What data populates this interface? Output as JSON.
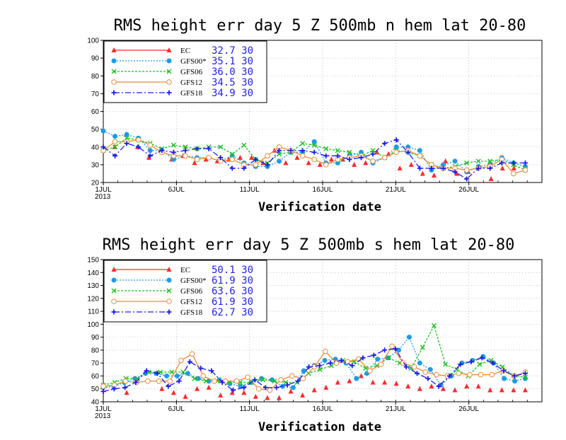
{
  "chart_data": [
    {
      "type": "line",
      "title": "RMS height err   day 5  Z 500mb  n hem  lat 20-80",
      "xlabel": "Verification date",
      "x_ticks": [
        "1JUL",
        "6JUL",
        "11JUL",
        "16JUL",
        "21JUL",
        "26JUL"
      ],
      "year_label": "2013",
      "xlim": [
        1,
        31
      ],
      "ylim": [
        20,
        100
      ],
      "y_ticks": [
        20,
        30,
        40,
        50,
        60,
        70,
        80,
        90,
        100
      ],
      "grid": true,
      "legend_position": "top-left",
      "series": [
        {
          "name": "EC",
          "value": "32.7 30",
          "color": "#ff2a2a",
          "marker": "triangle",
          "dash": "solid",
          "show_line": false,
          "values": [
            null,
            40,
            47,
            40,
            34,
            38,
            33,
            35,
            31,
            33,
            32,
            33,
            34,
            34,
            31,
            38,
            31,
            34,
            31,
            30,
            33,
            33,
            30,
            31,
            37,
            36,
            28,
            30,
            25,
            24,
            32,
            25,
            26,
            29,
            22,
            28,
            28,
            28
          ]
        },
        {
          "name": "GFS00*",
          "value": "35.1 30",
          "color": "#1e9be6",
          "marker": "dot",
          "dash": "2,2",
          "show_line": true,
          "values": [
            49,
            46,
            47,
            45,
            38,
            38,
            33,
            35,
            34,
            34,
            32,
            35,
            31,
            29,
            29,
            32,
            37,
            37,
            43,
            31,
            31,
            35,
            37,
            31,
            34,
            40,
            40,
            38,
            27,
            30,
            32,
            26,
            29,
            30,
            34,
            31,
            29
          ]
        },
        {
          "name": "GFS06",
          "value": "36.0 30",
          "color": "#1ebe1e",
          "marker": "cross",
          "dash": "3,2",
          "show_line": true,
          "values": [
            38,
            40,
            45,
            44,
            42,
            39,
            41,
            40,
            39,
            40,
            40,
            36,
            41,
            33,
            31,
            36,
            37,
            42,
            41,
            39,
            38,
            37,
            35,
            38,
            34,
            38,
            37,
            35,
            30,
            28,
            29,
            31,
            32,
            32,
            33,
            30,
            27
          ]
        },
        {
          "name": "GFS12",
          "value": "34.5 30",
          "color": "#e68c3c",
          "marker": "circle",
          "dash": "solid",
          "show_line": true,
          "values": [
            38,
            43,
            43,
            44,
            41,
            37,
            35,
            35,
            33,
            34,
            32,
            33,
            30,
            30,
            35,
            40,
            38,
            35,
            33,
            30,
            33,
            34,
            35,
            32,
            34,
            37,
            38,
            35,
            30,
            28,
            28,
            27,
            28,
            29,
            33,
            25,
            27
          ]
        },
        {
          "name": "GFS18",
          "value": "34.9 30",
          "color": "#1e1ee6",
          "marker": "plus",
          "dash": "8,3,2,3",
          "show_line": true,
          "values": [
            40,
            35,
            42,
            40,
            35,
            38,
            37,
            38,
            39,
            39,
            34,
            28,
            28,
            33,
            30,
            38,
            38,
            38,
            37,
            35,
            35,
            33,
            34,
            36,
            42,
            44,
            37,
            28,
            28,
            28,
            26,
            22,
            28,
            28,
            31,
            31,
            31
          ]
        }
      ]
    },
    {
      "type": "line",
      "title": "RMS height err   day 5  Z 500mb  s hem  lat 20-80",
      "xlabel": "Verification date",
      "x_ticks": [
        "1JUL",
        "6JUL",
        "11JUL",
        "16JUL",
        "21JUL",
        "26JUL"
      ],
      "year_label": "2013",
      "xlim": [
        1,
        31
      ],
      "ylim": [
        40,
        150
      ],
      "y_ticks": [
        40,
        50,
        60,
        70,
        80,
        90,
        100,
        110,
        120,
        130,
        140,
        150
      ],
      "grid": true,
      "legend_position": "top-left",
      "series": [
        {
          "name": "EC",
          "value": "50.1 30",
          "color": "#ff2a2a",
          "marker": "triangle",
          "dash": "solid",
          "show_line": false,
          "values": [
            null,
            null,
            47,
            null,
            null,
            50,
            47,
            44,
            50,
            51,
            45,
            47,
            47,
            44,
            43,
            43,
            48,
            45,
            49,
            51,
            55,
            56,
            60,
            55,
            55,
            54,
            52,
            50,
            52,
            50,
            49,
            52,
            52,
            49,
            49,
            49,
            49
          ]
        },
        {
          "name": "GFS00*",
          "value": "61.9 30",
          "color": "#1e9be6",
          "marker": "dot",
          "dash": "2,2",
          "show_line": true,
          "values": [
            51,
            52,
            55,
            58,
            62,
            62,
            60,
            60,
            62,
            58,
            56,
            57,
            54,
            52,
            55,
            58,
            57,
            52,
            51,
            64,
            68,
            72,
            73,
            70,
            58,
            62,
            73,
            74,
            80,
            90,
            70,
            65,
            53,
            60,
            70,
            72,
            75,
            70,
            58,
            56,
            58
          ]
        },
        {
          "name": "GFS06",
          "value": "63.6 30",
          "color": "#1ebe1e",
          "marker": "cross",
          "dash": "3,2",
          "show_line": true,
          "values": [
            53,
            55,
            58,
            58,
            63,
            63,
            63,
            63,
            58,
            56,
            56,
            55,
            55,
            55,
            57,
            56,
            55,
            55,
            62,
            65,
            68,
            72,
            71,
            66,
            68,
            74,
            70,
            66,
            82,
            99,
            69,
            65,
            60,
            69,
            72,
            67,
            60,
            59
          ]
        },
        {
          "name": "GFS12",
          "value": "61.9 30",
          "color": "#e68c3c",
          "marker": "circle",
          "dash": "solid",
          "show_line": true,
          "values": [
            52,
            53,
            56,
            55,
            56,
            56,
            56,
            72,
            77,
            60,
            56,
            56,
            56,
            59,
            50,
            49,
            57,
            60,
            58,
            67,
            79,
            70,
            71,
            73,
            64,
            69,
            83,
            70,
            67,
            63,
            61,
            60,
            62,
            61,
            61,
            61,
            64,
            60,
            63
          ]
        },
        {
          "name": "GFS18",
          "value": "62.7 30",
          "color": "#1e1ee6",
          "marker": "plus",
          "dash": "8,3,2,3",
          "show_line": true,
          "values": [
            48,
            50,
            51,
            55,
            64,
            62,
            52,
            56,
            71,
            66,
            64,
            55,
            49,
            51,
            57,
            51,
            51,
            53,
            56,
            67,
            68,
            70,
            72,
            68,
            74,
            76,
            80,
            81,
            67,
            62,
            58,
            52,
            60,
            69,
            71,
            74,
            70,
            64,
            60,
            62
          ]
        }
      ]
    }
  ]
}
